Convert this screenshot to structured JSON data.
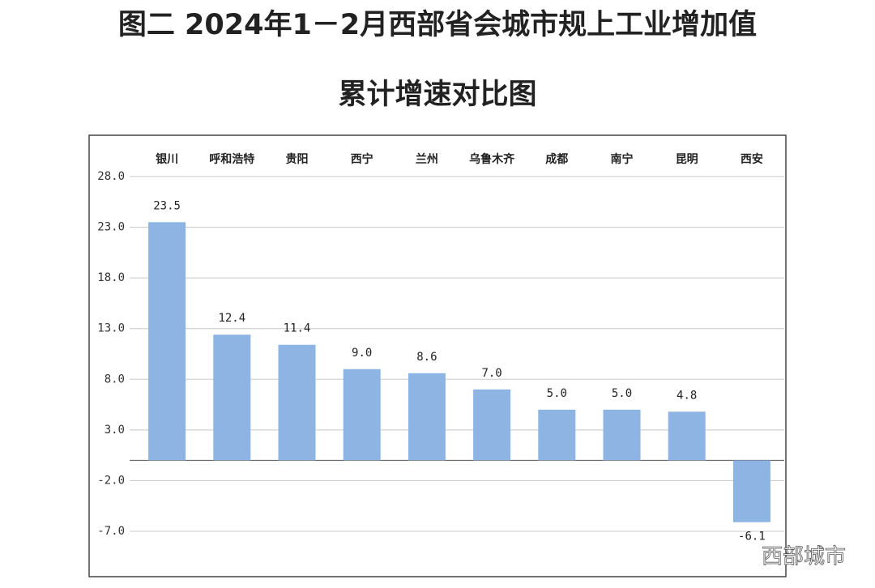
{
  "chart_data": {
    "type": "bar",
    "title": "图二  2024年1－2月西部省会城市规上工业增加值",
    "subtitle": "累计增速对比图",
    "categories": [
      "银川",
      "呼和浩特",
      "贵阳",
      "西宁",
      "兰州",
      "乌鲁木齐",
      "成都",
      "南宁",
      "昆明",
      "西安"
    ],
    "values": [
      23.5,
      12.4,
      11.4,
      9.0,
      8.6,
      7.0,
      5.0,
      5.0,
      4.8,
      -6.1
    ],
    "value_labels": [
      "23.5",
      "12.4",
      "11.4",
      "9.0",
      "8.6",
      "7.0",
      "5.0",
      "5.0",
      "4.8",
      "-6.1"
    ],
    "color": "#8db4e2",
    "ylim": [
      -7,
      28
    ],
    "yticks": [
      {
        "value": -7,
        "label": "-7.0"
      },
      {
        "value": -2,
        "label": "-2.0"
      },
      {
        "value": 3,
        "label": "3.0"
      },
      {
        "value": 8,
        "label": "8.0"
      },
      {
        "value": 13,
        "label": "13.0"
      },
      {
        "value": 18,
        "label": "18.0"
      },
      {
        "value": 23,
        "label": "23.0"
      },
      {
        "value": 28,
        "label": "28.0"
      }
    ],
    "grid": true,
    "watermark": "西部城市"
  }
}
